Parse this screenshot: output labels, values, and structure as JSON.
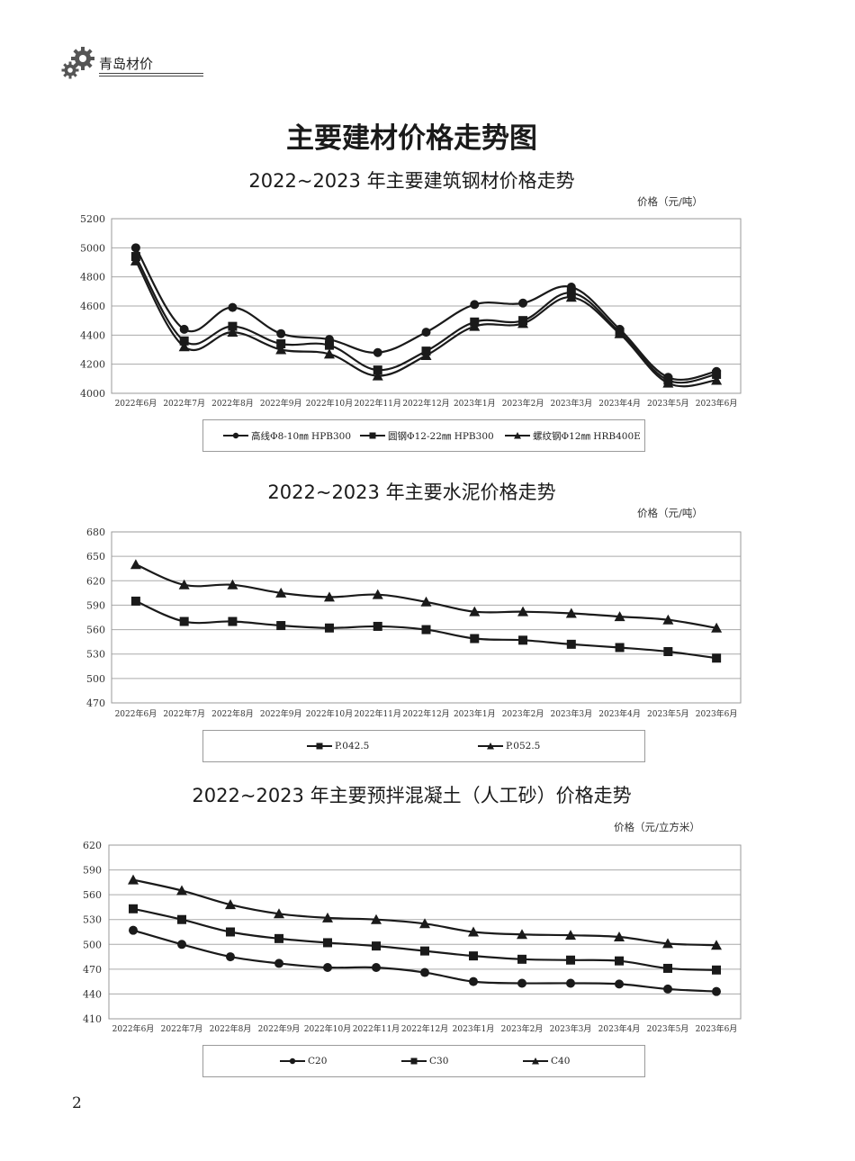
{
  "header": {
    "brand": "青岛材价",
    "icon": "gear-icon"
  },
  "main_title": "主要建材价格走势图",
  "page_number": "2",
  "colors": {
    "line": "#1a1a1a",
    "grid": "#aaaaaa",
    "frame": "#999999"
  },
  "chart_data": [
    {
      "type": "line",
      "title": "2022~2023 年主要建筑钢材价格走势",
      "unit": "价格（元/吨）",
      "categories": [
        "2022年6月",
        "2022年7月",
        "2022年8月",
        "2022年9月",
        "2022年10月",
        "2022年11月",
        "2022年12月",
        "2023年1月",
        "2023年2月",
        "2023年3月",
        "2023年4月",
        "2023年5月",
        "2023年6月"
      ],
      "ylim": [
        4000,
        5200
      ],
      "yticks": [
        4000,
        4200,
        4400,
        4600,
        4800,
        5000,
        5200
      ],
      "series": [
        {
          "name": "高线Φ8-10㎜ HPB300",
          "marker": "circle",
          "values": [
            5000,
            4440,
            4590,
            4410,
            4370,
            4280,
            4420,
            4610,
            4620,
            4730,
            4440,
            4110,
            4150
          ]
        },
        {
          "name": "圆钢Φ12-22㎜ HPB300",
          "marker": "square",
          "values": [
            4940,
            4360,
            4460,
            4340,
            4330,
            4160,
            4290,
            4490,
            4500,
            4690,
            4420,
            4090,
            4130
          ]
        },
        {
          "name": "螺纹钢Φ12㎜ HRB400E",
          "marker": "triangle",
          "values": [
            4910,
            4320,
            4420,
            4300,
            4270,
            4120,
            4260,
            4460,
            4480,
            4660,
            4410,
            4070,
            4090
          ]
        }
      ]
    },
    {
      "type": "line",
      "title": "2022~2023 年主要水泥价格走势",
      "unit": "价格（元/吨）",
      "categories": [
        "2022年6月",
        "2022年7月",
        "2022年8月",
        "2022年9月",
        "2022年10月",
        "2022年11月",
        "2022年12月",
        "2023年1月",
        "2023年2月",
        "2023年3月",
        "2023年4月",
        "2023年5月",
        "2023年6月"
      ],
      "ylim": [
        470,
        680
      ],
      "yticks": [
        470,
        500,
        530,
        560,
        590,
        620,
        650,
        680
      ],
      "series": [
        {
          "name": "P.042.5",
          "marker": "square",
          "values": [
            595,
            570,
            570,
            565,
            562,
            564,
            560,
            549,
            547,
            542,
            538,
            533,
            525
          ]
        },
        {
          "name": "P.052.5",
          "marker": "triangle",
          "values": [
            640,
            615,
            615,
            605,
            600,
            603,
            594,
            582,
            582,
            580,
            576,
            572,
            562
          ]
        }
      ]
    },
    {
      "type": "line",
      "title": "2022~2023 年主要预拌混凝土（人工砂）价格走势",
      "unit": "价格（元/立方米）",
      "categories": [
        "2022年6月",
        "2022年7月",
        "2022年8月",
        "2022年9月",
        "2022年10月",
        "2022年11月",
        "2022年12月",
        "2023年1月",
        "2023年2月",
        "2023年3月",
        "2023年4月",
        "2023年5月",
        "2023年6月"
      ],
      "ylim": [
        410,
        620
      ],
      "yticks": [
        410,
        440,
        470,
        500,
        530,
        560,
        590,
        620
      ],
      "series": [
        {
          "name": "C20",
          "marker": "circle",
          "values": [
            517,
            500,
            485,
            477,
            472,
            472,
            466,
            455,
            453,
            453,
            452,
            446,
            443
          ]
        },
        {
          "name": "C30",
          "marker": "square",
          "values": [
            543,
            530,
            515,
            507,
            502,
            498,
            492,
            486,
            482,
            481,
            480,
            471,
            469
          ]
        },
        {
          "name": "C40",
          "marker": "triangle",
          "values": [
            578,
            565,
            548,
            537,
            532,
            530,
            525,
            515,
            512,
            511,
            509,
            501,
            499
          ]
        }
      ]
    }
  ]
}
